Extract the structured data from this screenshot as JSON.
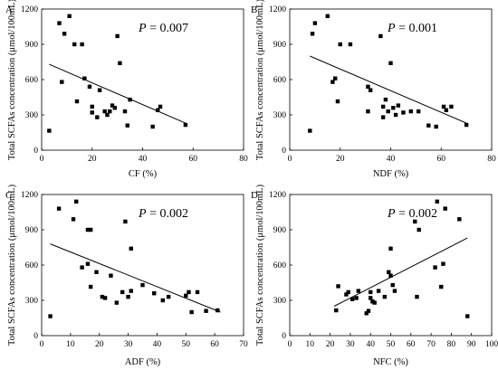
{
  "figure": {
    "panels": [
      {
        "letter": "A",
        "pvalue_label": "P",
        "pvalue_text": " = 0.007"
      },
      {
        "letter": "B",
        "pvalue_label": "P",
        "pvalue_text": " = 0.001"
      },
      {
        "letter": "C",
        "pvalue_label": "P",
        "pvalue_text": " = 0.002"
      },
      {
        "letter": "D",
        "pvalue_label": "P",
        "pvalue_text": " = 0.002"
      }
    ]
  },
  "chart_data": [
    {
      "type": "scatter",
      "xlabel": "CF (%)",
      "ylabel": "Total SCFAs concentration (μmol/100mL)",
      "xlim": [
        0,
        80
      ],
      "ylim": [
        0,
        1200
      ],
      "xticks": [
        0,
        20,
        40,
        60,
        80
      ],
      "yticks": [
        0,
        300,
        600,
        900,
        1200
      ],
      "annotation": "P = 0.007",
      "points": [
        {
          "x": 3,
          "y": 165
        },
        {
          "x": 7,
          "y": 1080
        },
        {
          "x": 8,
          "y": 580
        },
        {
          "x": 9,
          "y": 990
        },
        {
          "x": 11,
          "y": 1140
        },
        {
          "x": 13,
          "y": 900
        },
        {
          "x": 14,
          "y": 415
        },
        {
          "x": 16,
          "y": 900
        },
        {
          "x": 17,
          "y": 610
        },
        {
          "x": 19,
          "y": 540
        },
        {
          "x": 20,
          "y": 370
        },
        {
          "x": 20,
          "y": 320
        },
        {
          "x": 22,
          "y": 280
        },
        {
          "x": 23,
          "y": 510
        },
        {
          "x": 25,
          "y": 330
        },
        {
          "x": 26,
          "y": 300
        },
        {
          "x": 27,
          "y": 330
        },
        {
          "x": 28,
          "y": 380
        },
        {
          "x": 29,
          "y": 360
        },
        {
          "x": 30,
          "y": 970
        },
        {
          "x": 31,
          "y": 740
        },
        {
          "x": 33,
          "y": 330
        },
        {
          "x": 34,
          "y": 210
        },
        {
          "x": 35,
          "y": 430
        },
        {
          "x": 44,
          "y": 200
        },
        {
          "x": 46,
          "y": 340
        },
        {
          "x": 47,
          "y": 370
        },
        {
          "x": 57,
          "y": 215
        }
      ],
      "trendline": {
        "x": [
          3,
          57
        ],
        "y": [
          730,
          230
        ]
      }
    },
    {
      "type": "scatter",
      "xlabel": "NDF (%)",
      "ylabel": "Total SCFAs concentration (μmol/100mL)",
      "xlim": [
        0,
        80
      ],
      "ylim": [
        0,
        1200
      ],
      "xticks": [
        0,
        20,
        40,
        60,
        80
      ],
      "yticks": [
        0,
        300,
        600,
        900,
        1200
      ],
      "annotation": "P = 0.001",
      "points": [
        {
          "x": 8,
          "y": 165
        },
        {
          "x": 9,
          "y": 990
        },
        {
          "x": 10,
          "y": 1080
        },
        {
          "x": 15,
          "y": 1140
        },
        {
          "x": 17,
          "y": 580
        },
        {
          "x": 18,
          "y": 610
        },
        {
          "x": 19,
          "y": 415
        },
        {
          "x": 20,
          "y": 900
        },
        {
          "x": 24,
          "y": 900
        },
        {
          "x": 31,
          "y": 540
        },
        {
          "x": 31,
          "y": 330
        },
        {
          "x": 32,
          "y": 510
        },
        {
          "x": 36,
          "y": 970
        },
        {
          "x": 37,
          "y": 370
        },
        {
          "x": 37,
          "y": 280
        },
        {
          "x": 38,
          "y": 430
        },
        {
          "x": 39,
          "y": 330
        },
        {
          "x": 40,
          "y": 740
        },
        {
          "x": 41,
          "y": 360
        },
        {
          "x": 42,
          "y": 300
        },
        {
          "x": 43,
          "y": 380
        },
        {
          "x": 45,
          "y": 320
        },
        {
          "x": 48,
          "y": 330
        },
        {
          "x": 51,
          "y": 330
        },
        {
          "x": 55,
          "y": 210
        },
        {
          "x": 58,
          "y": 200
        },
        {
          "x": 61,
          "y": 370
        },
        {
          "x": 62,
          "y": 340
        },
        {
          "x": 64,
          "y": 370
        },
        {
          "x": 70,
          "y": 215
        }
      ],
      "trendline": {
        "x": [
          8,
          70
        ],
        "y": [
          800,
          230
        ]
      }
    },
    {
      "type": "scatter",
      "xlabel": "ADF (%)",
      "ylabel": "Total SCFAs concentration (μmol/100mL)",
      "xlim": [
        0,
        70
      ],
      "ylim": [
        0,
        1200
      ],
      "xticks": [
        0,
        10,
        20,
        30,
        40,
        50,
        60,
        70
      ],
      "yticks": [
        0,
        300,
        600,
        900,
        1200
      ],
      "annotation": "P = 0.002",
      "points": [
        {
          "x": 3,
          "y": 165
        },
        {
          "x": 6,
          "y": 1080
        },
        {
          "x": 11,
          "y": 990
        },
        {
          "x": 12,
          "y": 1140
        },
        {
          "x": 14,
          "y": 580
        },
        {
          "x": 16,
          "y": 900
        },
        {
          "x": 16,
          "y": 610
        },
        {
          "x": 17,
          "y": 900
        },
        {
          "x": 17,
          "y": 415
        },
        {
          "x": 19,
          "y": 540
        },
        {
          "x": 21,
          "y": 330
        },
        {
          "x": 22,
          "y": 320
        },
        {
          "x": 24,
          "y": 510
        },
        {
          "x": 26,
          "y": 280
        },
        {
          "x": 28,
          "y": 370
        },
        {
          "x": 29,
          "y": 970
        },
        {
          "x": 30,
          "y": 330
        },
        {
          "x": 31,
          "y": 740
        },
        {
          "x": 31,
          "y": 380
        },
        {
          "x": 35,
          "y": 430
        },
        {
          "x": 39,
          "y": 360
        },
        {
          "x": 42,
          "y": 300
        },
        {
          "x": 44,
          "y": 330
        },
        {
          "x": 50,
          "y": 340
        },
        {
          "x": 51,
          "y": 370
        },
        {
          "x": 52,
          "y": 200
        },
        {
          "x": 54,
          "y": 370
        },
        {
          "x": 57,
          "y": 210
        },
        {
          "x": 61,
          "y": 215
        }
      ],
      "trendline": {
        "x": [
          3,
          62
        ],
        "y": [
          780,
          200
        ]
      }
    },
    {
      "type": "scatter",
      "xlabel": "NFC (%)",
      "ylabel": "Total SCFAs concentration (μmol/100mL)",
      "xlim": [
        0,
        100
      ],
      "ylim": [
        0,
        1200
      ],
      "xticks": [
        0,
        10,
        20,
        30,
        40,
        50,
        60,
        70,
        80,
        90,
        100
      ],
      "yticks": [
        0,
        300,
        600,
        900,
        1200
      ],
      "annotation": "P = 0.002",
      "points": [
        {
          "x": 23,
          "y": 215
        },
        {
          "x": 24,
          "y": 420
        },
        {
          "x": 28,
          "y": 350
        },
        {
          "x": 29,
          "y": 370
        },
        {
          "x": 31,
          "y": 310
        },
        {
          "x": 33,
          "y": 320
        },
        {
          "x": 34,
          "y": 380
        },
        {
          "x": 38,
          "y": 190
        },
        {
          "x": 39,
          "y": 210
        },
        {
          "x": 40,
          "y": 320
        },
        {
          "x": 40,
          "y": 370
        },
        {
          "x": 41,
          "y": 290
        },
        {
          "x": 42,
          "y": 280
        },
        {
          "x": 44,
          "y": 380
        },
        {
          "x": 47,
          "y": 330
        },
        {
          "x": 49,
          "y": 540
        },
        {
          "x": 50,
          "y": 740
        },
        {
          "x": 50,
          "y": 510
        },
        {
          "x": 51,
          "y": 430
        },
        {
          "x": 52,
          "y": 380
        },
        {
          "x": 62,
          "y": 970
        },
        {
          "x": 63,
          "y": 330
        },
        {
          "x": 64,
          "y": 900
        },
        {
          "x": 72,
          "y": 580
        },
        {
          "x": 73,
          "y": 1140
        },
        {
          "x": 75,
          "y": 415
        },
        {
          "x": 76,
          "y": 610
        },
        {
          "x": 77,
          "y": 1080
        },
        {
          "x": 84,
          "y": 990
        },
        {
          "x": 88,
          "y": 165
        }
      ],
      "trendline": {
        "x": [
          22,
          88
        ],
        "y": [
          250,
          830
        ]
      }
    }
  ]
}
